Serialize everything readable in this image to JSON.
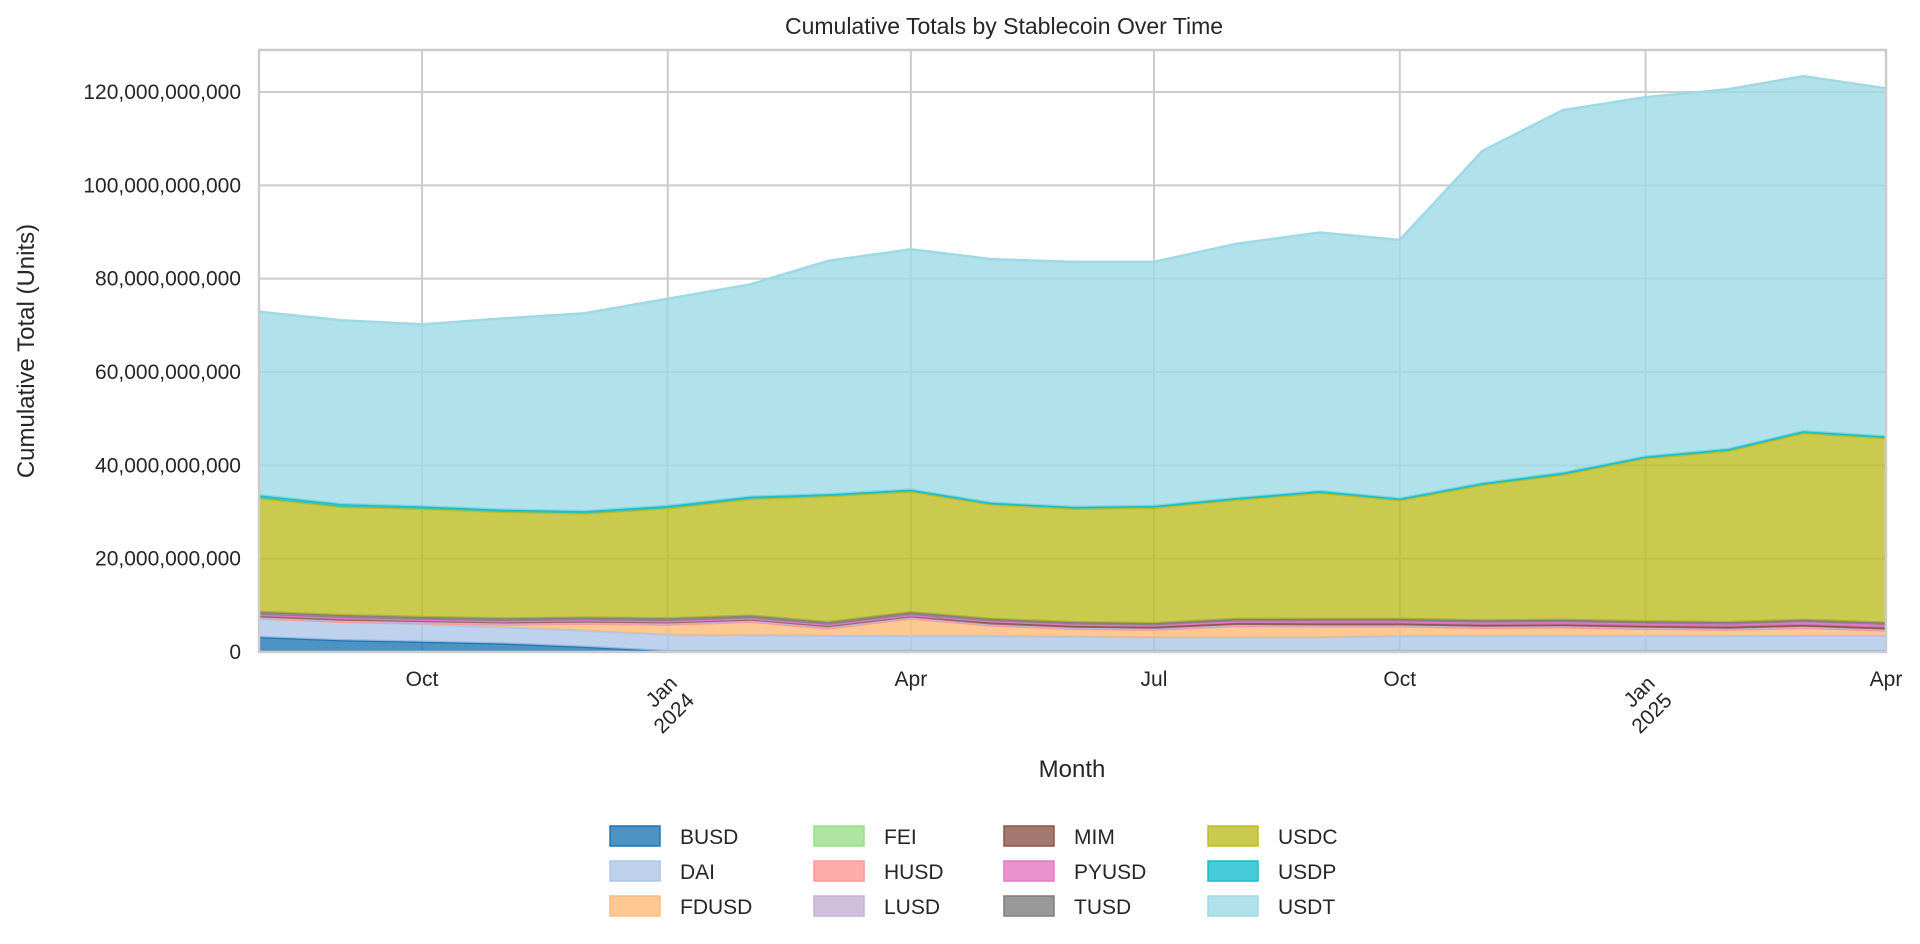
{
  "chart_data": {
    "type": "area",
    "stacked": true,
    "title": "Cumulative Totals by Stablecoin Over Time",
    "xlabel": "Month",
    "ylabel": "Cumulative Total (Units)",
    "ylim": [
      0,
      129000000000
    ],
    "yticks": [
      0,
      20000000000,
      40000000000,
      60000000000,
      80000000000,
      100000000000,
      120000000000
    ],
    "ytick_labels": [
      "0",
      "20,000,000,000",
      "40,000,000,000",
      "60,000,000,000",
      "80,000,000,000",
      "100,000,000,000",
      "120,000,000,000"
    ],
    "x": [
      "2023-08-01",
      "2023-09-01",
      "2023-10-01",
      "2023-11-01",
      "2023-12-01",
      "2024-01-01",
      "2024-02-01",
      "2024-03-01",
      "2024-04-01",
      "2024-05-01",
      "2024-06-01",
      "2024-07-01",
      "2024-08-01",
      "2024-09-01",
      "2024-10-01",
      "2024-11-01",
      "2024-12-01",
      "2025-01-01",
      "2025-02-01",
      "2025-03-01",
      "2025-04-01"
    ],
    "xticks": [
      {
        "date": "2023-10-01",
        "label": "Oct",
        "major": false
      },
      {
        "date": "2024-01-01",
        "label": "Jan\n2024",
        "major": true
      },
      {
        "date": "2024-04-01",
        "label": "Apr",
        "major": false
      },
      {
        "date": "2024-07-01",
        "label": "Jul",
        "major": false
      },
      {
        "date": "2024-10-01",
        "label": "Oct",
        "major": false
      },
      {
        "date": "2025-01-01",
        "label": "Jan\n2025",
        "major": true
      },
      {
        "date": "2025-04-01",
        "label": "Apr",
        "major": false
      }
    ],
    "grid": true,
    "legend_position": "bottom-center",
    "series": [
      {
        "name": "BUSD",
        "color": "#1f77b4",
        "values": [
          3200000000,
          2500000000,
          2200000000,
          1800000000,
          1100000000,
          200000000,
          200000000,
          200000000,
          200000000,
          200000000,
          200000000,
          200000000,
          200000000,
          200000000,
          200000000,
          200000000,
          200000000,
          200000000,
          200000000,
          200000000,
          200000000
        ]
      },
      {
        "name": "DAI",
        "color": "#aec7e8",
        "values": [
          4000000000,
          4000000000,
          3800000000,
          3500000000,
          3500000000,
          3500000000,
          3400000000,
          3300000000,
          3200000000,
          3200000000,
          3100000000,
          3000000000,
          3000000000,
          3000000000,
          3200000000,
          3200000000,
          3200000000,
          3200000000,
          3200000000,
          3300000000,
          3300000000
        ]
      },
      {
        "name": "FDUSD",
        "color": "#ffbb78",
        "values": [
          0,
          0,
          200000000,
          600000000,
          1500000000,
          2200000000,
          2900000000,
          1600000000,
          3800000000,
          2300000000,
          1700000000,
          1600000000,
          2400000000,
          2300000000,
          2100000000,
          1800000000,
          1900000000,
          1600000000,
          1400000000,
          1700000000,
          1100000000
        ]
      },
      {
        "name": "FEI",
        "color": "#98df8a",
        "values": [
          0,
          0,
          0,
          0,
          0,
          0,
          0,
          0,
          0,
          0,
          0,
          0,
          0,
          0,
          0,
          0,
          0,
          0,
          0,
          0,
          0
        ]
      },
      {
        "name": "HUSD",
        "color": "#ff9896",
        "values": [
          0,
          0,
          0,
          0,
          0,
          0,
          0,
          0,
          0,
          0,
          0,
          0,
          0,
          0,
          0,
          0,
          0,
          0,
          0,
          0,
          0
        ]
      },
      {
        "name": "LUSD",
        "color": "#c5b0d5",
        "values": [
          200000000,
          200000000,
          200000000,
          200000000,
          200000000,
          200000000,
          200000000,
          200000000,
          200000000,
          200000000,
          200000000,
          200000000,
          200000000,
          200000000,
          200000000,
          200000000,
          200000000,
          200000000,
          200000000,
          200000000,
          200000000
        ]
      },
      {
        "name": "MIM",
        "color": "#8c564b",
        "values": [
          600000000,
          600000000,
          500000000,
          500000000,
          500000000,
          500000000,
          500000000,
          500000000,
          500000000,
          500000000,
          400000000,
          400000000,
          400000000,
          400000000,
          400000000,
          400000000,
          400000000,
          400000000,
          400000000,
          400000000,
          400000000
        ]
      },
      {
        "name": "PYUSD",
        "color": "#e377c2",
        "values": [
          0,
          0,
          0,
          0,
          0,
          0,
          0,
          0,
          0,
          200000000,
          300000000,
          300000000,
          400000000,
          500000000,
          500000000,
          500000000,
          500000000,
          500000000,
          500000000,
          600000000,
          600000000
        ]
      },
      {
        "name": "TUSD",
        "color": "#7f7f7f",
        "values": [
          600000000,
          600000000,
          600000000,
          600000000,
          600000000,
          600000000,
          600000000,
          600000000,
          600000000,
          500000000,
          500000000,
          500000000,
          500000000,
          500000000,
          500000000,
          500000000,
          500000000,
          500000000,
          500000000,
          500000000,
          500000000
        ]
      },
      {
        "name": "USDC",
        "color": "#bcbd22",
        "values": [
          24400000000,
          23200000000,
          23200000000,
          22800000000,
          22300000000,
          23600000000,
          25000000000,
          27000000000,
          25900000000,
          24500000000,
          24300000000,
          24700000000,
          25500000000,
          27000000000,
          25400000000,
          29000000000,
          31100000000,
          34900000000,
          36700000000,
          40000000000,
          39500000000
        ]
      },
      {
        "name": "USDP",
        "color": "#17becf",
        "values": [
          600000000,
          600000000,
          500000000,
          500000000,
          500000000,
          500000000,
          500000000,
          400000000,
          400000000,
          400000000,
          400000000,
          400000000,
          400000000,
          400000000,
          400000000,
          400000000,
          400000000,
          400000000,
          400000000,
          400000000,
          400000000
        ]
      },
      {
        "name": "USDT",
        "color": "#9edae5",
        "values": [
          39300000000,
          39400000000,
          39000000000,
          41000000000,
          42400000000,
          44400000000,
          45500000000,
          50000000000,
          51500000000,
          52200000000,
          52500000000,
          52300000000,
          54500000000,
          55400000000,
          55400000000,
          71200000000,
          77700000000,
          77000000000,
          77100000000,
          76100000000,
          74600000000
        ]
      }
    ]
  }
}
